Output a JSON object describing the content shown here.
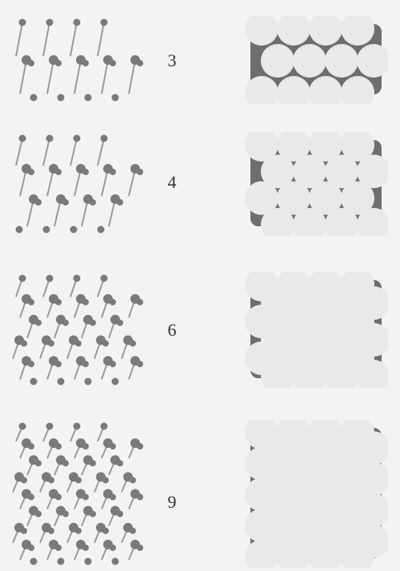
{
  "figure": {
    "rows": [
      {
        "label": "3",
        "layers": 3
      },
      {
        "label": "4",
        "layers": 4
      },
      {
        "label": "6",
        "layers": 6
      },
      {
        "label": "9",
        "layers": 9
      }
    ],
    "colors": {
      "background": "#f3f3f3",
      "atom": "#7a7a7a",
      "bond": "#9a9a9a",
      "sphere": "#e9e9e9",
      "void": "#6e6e6e",
      "label": "#333333"
    }
  }
}
